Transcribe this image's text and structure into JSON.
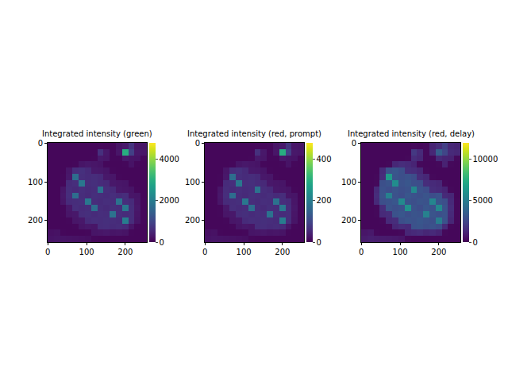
{
  "chart_data": [
    {
      "type": "heatmap",
      "title": "Integrated intensity (green)",
      "xlim": [
        -0.5,
        255.5
      ],
      "ylim": [
        255.5,
        -0.5
      ],
      "xticks": [
        0,
        100,
        200
      ],
      "yticks": [
        0,
        100,
        200
      ],
      "grid": false,
      "colorbar_range": [
        0,
        4800
      ],
      "colorbar_ticks": [
        0,
        2000,
        4000
      ],
      "cells": [
        [
          80,
          80,
          80,
          80,
          80,
          80,
          80,
          80,
          90,
          80,
          90,
          250,
          320,
          700,
          280,
          260
        ],
        [
          80,
          80,
          80,
          80,
          80,
          80,
          80,
          80,
          650,
          300,
          90,
          280,
          3000,
          900,
          300,
          280
        ],
        [
          80,
          80,
          80,
          80,
          80,
          80,
          80,
          90,
          320,
          280,
          90,
          90,
          300,
          260,
          240,
          90
        ],
        [
          80,
          80,
          80,
          80,
          90,
          260,
          300,
          280,
          250,
          90,
          80,
          80,
          90,
          240,
          90,
          80
        ],
        [
          80,
          80,
          80,
          280,
          600,
          650,
          560,
          320,
          300,
          260,
          90,
          80,
          80,
          80,
          80,
          80
        ],
        [
          80,
          80,
          90,
          300,
          1700,
          620,
          580,
          600,
          560,
          300,
          270,
          90,
          80,
          80,
          80,
          80
        ],
        [
          80,
          80,
          90,
          580,
          620,
          1900,
          600,
          640,
          580,
          550,
          300,
          280,
          260,
          90,
          80,
          80
        ],
        [
          80,
          80,
          280,
          600,
          560,
          620,
          580,
          600,
          1800,
          600,
          560,
          300,
          280,
          250,
          90,
          80
        ],
        [
          80,
          80,
          300,
          620,
          1700,
          600,
          560,
          640,
          600,
          580,
          620,
          560,
          600,
          280,
          260,
          80
        ],
        [
          80,
          80,
          280,
          580,
          600,
          640,
          1900,
          600,
          580,
          620,
          600,
          1800,
          620,
          580,
          280,
          90
        ],
        [
          80,
          80,
          90,
          300,
          620,
          580,
          600,
          1700,
          600,
          560,
          640,
          600,
          1900,
          600,
          300,
          90
        ],
        [
          80,
          80,
          90,
          280,
          300,
          600,
          640,
          580,
          620,
          600,
          1800,
          620,
          580,
          600,
          280,
          90
        ],
        [
          80,
          80,
          80,
          90,
          280,
          300,
          580,
          620,
          600,
          640,
          600,
          580,
          2000,
          600,
          260,
          90
        ],
        [
          80,
          80,
          80,
          80,
          90,
          260,
          300,
          280,
          600,
          620,
          580,
          600,
          560,
          280,
          90,
          80
        ],
        [
          200,
          220,
          90,
          80,
          80,
          80,
          90,
          260,
          280,
          300,
          260,
          280,
          250,
          90,
          80,
          80
        ],
        [
          240,
          260,
          250,
          230,
          220,
          200,
          180,
          90,
          80,
          80,
          80,
          80,
          80,
          80,
          80,
          80
        ]
      ]
    },
    {
      "type": "heatmap",
      "title": "Integrated intensity (red, prompt)",
      "xlim": [
        -0.5,
        255.5
      ],
      "ylim": [
        255.5,
        -0.5
      ],
      "xticks": [
        0,
        100,
        200
      ],
      "yticks": [
        0,
        100,
        200
      ],
      "grid": false,
      "colorbar_range": [
        0,
        480
      ],
      "colorbar_ticks": [
        0,
        200,
        400
      ],
      "cells": [
        [
          8,
          8,
          8,
          8,
          8,
          8,
          8,
          8,
          9,
          8,
          9,
          25,
          32,
          70,
          28,
          26
        ],
        [
          8,
          8,
          8,
          8,
          8,
          8,
          8,
          8,
          65,
          30,
          9,
          28,
          300,
          90,
          30,
          28
        ],
        [
          8,
          8,
          8,
          8,
          8,
          8,
          8,
          9,
          32,
          28,
          9,
          9,
          30,
          26,
          24,
          9
        ],
        [
          8,
          8,
          8,
          8,
          9,
          26,
          30,
          28,
          25,
          9,
          8,
          8,
          9,
          24,
          9,
          8
        ],
        [
          8,
          8,
          8,
          28,
          60,
          65,
          56,
          32,
          30,
          26,
          9,
          8,
          8,
          8,
          8,
          8
        ],
        [
          8,
          8,
          9,
          30,
          170,
          62,
          58,
          60,
          56,
          30,
          27,
          9,
          8,
          8,
          8,
          8
        ],
        [
          8,
          8,
          9,
          58,
          62,
          190,
          60,
          64,
          58,
          55,
          30,
          28,
          26,
          9,
          8,
          8
        ],
        [
          8,
          8,
          28,
          60,
          56,
          62,
          58,
          60,
          180,
          60,
          56,
          30,
          28,
          25,
          9,
          8
        ],
        [
          8,
          8,
          30,
          62,
          170,
          60,
          56,
          64,
          60,
          58,
          62,
          56,
          60,
          28,
          26,
          8
        ],
        [
          8,
          8,
          28,
          58,
          60,
          64,
          190,
          60,
          58,
          62,
          60,
          180,
          62,
          58,
          28,
          9
        ],
        [
          8,
          8,
          9,
          30,
          62,
          58,
          60,
          170,
          60,
          56,
          64,
          60,
          190,
          60,
          30,
          9
        ],
        [
          8,
          8,
          9,
          28,
          30,
          60,
          64,
          58,
          62,
          60,
          180,
          62,
          58,
          60,
          28,
          9
        ],
        [
          8,
          8,
          8,
          9,
          28,
          30,
          58,
          62,
          60,
          64,
          60,
          58,
          200,
          60,
          26,
          9
        ],
        [
          8,
          8,
          8,
          8,
          9,
          26,
          30,
          28,
          60,
          62,
          58,
          60,
          56,
          28,
          9,
          8
        ],
        [
          20,
          22,
          9,
          8,
          8,
          8,
          9,
          26,
          28,
          30,
          26,
          28,
          25,
          9,
          8,
          8
        ],
        [
          24,
          26,
          25,
          23,
          22,
          20,
          18,
          9,
          8,
          8,
          8,
          8,
          8,
          8,
          8,
          8
        ]
      ]
    },
    {
      "type": "heatmap",
      "title": "Integrated intensity (red, delay)",
      "xlim": [
        -0.5,
        255.5
      ],
      "ylim": [
        255.5,
        -0.5
      ],
      "xticks": [
        0,
        100,
        200
      ],
      "yticks": [
        0,
        100,
        200
      ],
      "grid": false,
      "colorbar_range": [
        0,
        12000
      ],
      "colorbar_ticks": [
        0,
        5000,
        10000
      ],
      "cells": [
        [
          200,
          200,
          200,
          200,
          200,
          200,
          200,
          200,
          250,
          200,
          250,
          1200,
          1500,
          2200,
          1300,
          1200
        ],
        [
          200,
          200,
          200,
          200,
          200,
          200,
          200,
          200,
          2000,
          1400,
          250,
          1300,
          3500,
          2500,
          1400,
          1300
        ],
        [
          200,
          200,
          200,
          200,
          200,
          200,
          200,
          250,
          1500,
          1300,
          250,
          250,
          1400,
          1200,
          1100,
          250
        ],
        [
          200,
          200,
          200,
          200,
          250,
          1300,
          1500,
          1400,
          1200,
          250,
          200,
          200,
          250,
          1100,
          250,
          200
        ],
        [
          200,
          200,
          200,
          1400,
          3000,
          3200,
          2900,
          1600,
          1500,
          1300,
          250,
          200,
          200,
          200,
          200,
          200
        ],
        [
          200,
          200,
          250,
          1500,
          6500,
          3100,
          2900,
          3000,
          2800,
          1500,
          1300,
          250,
          200,
          200,
          200,
          200
        ],
        [
          200,
          200,
          250,
          2900,
          3100,
          5800,
          3000,
          3200,
          2900,
          2800,
          1500,
          1400,
          1300,
          250,
          200,
          200
        ],
        [
          200,
          200,
          1400,
          3000,
          2800,
          3100,
          2900,
          3000,
          5500,
          3000,
          2800,
          1500,
          1400,
          1200,
          250,
          200
        ],
        [
          200,
          200,
          1500,
          3100,
          5200,
          3000,
          2800,
          3200,
          3000,
          2900,
          3100,
          2800,
          3000,
          1400,
          1300,
          200
        ],
        [
          200,
          200,
          1400,
          2900,
          3000,
          3200,
          5600,
          3000,
          2900,
          3100,
          3000,
          5400,
          3100,
          2900,
          1400,
          250
        ],
        [
          200,
          200,
          250,
          1500,
          3100,
          2900,
          3000,
          6000,
          3000,
          2800,
          3200,
          3000,
          5500,
          3000,
          1500,
          250
        ],
        [
          200,
          200,
          250,
          1400,
          1500,
          3000,
          3200,
          2900,
          3100,
          3000,
          5200,
          3100,
          2900,
          3000,
          1400,
          250
        ],
        [
          200,
          200,
          200,
          250,
          1400,
          1500,
          2900,
          3100,
          3000,
          3200,
          3000,
          2900,
          5000,
          3000,
          1300,
          250
        ],
        [
          200,
          200,
          200,
          200,
          250,
          1300,
          1500,
          1400,
          3000,
          3100,
          2900,
          3000,
          2800,
          1400,
          250,
          200
        ],
        [
          700,
          800,
          250,
          200,
          200,
          200,
          250,
          1300,
          1400,
          1500,
          1300,
          1400,
          1200,
          250,
          200,
          200
        ],
        [
          900,
          1000,
          950,
          900,
          850,
          800,
          700,
          250,
          200,
          200,
          200,
          200,
          200,
          200,
          200,
          200
        ]
      ]
    }
  ]
}
